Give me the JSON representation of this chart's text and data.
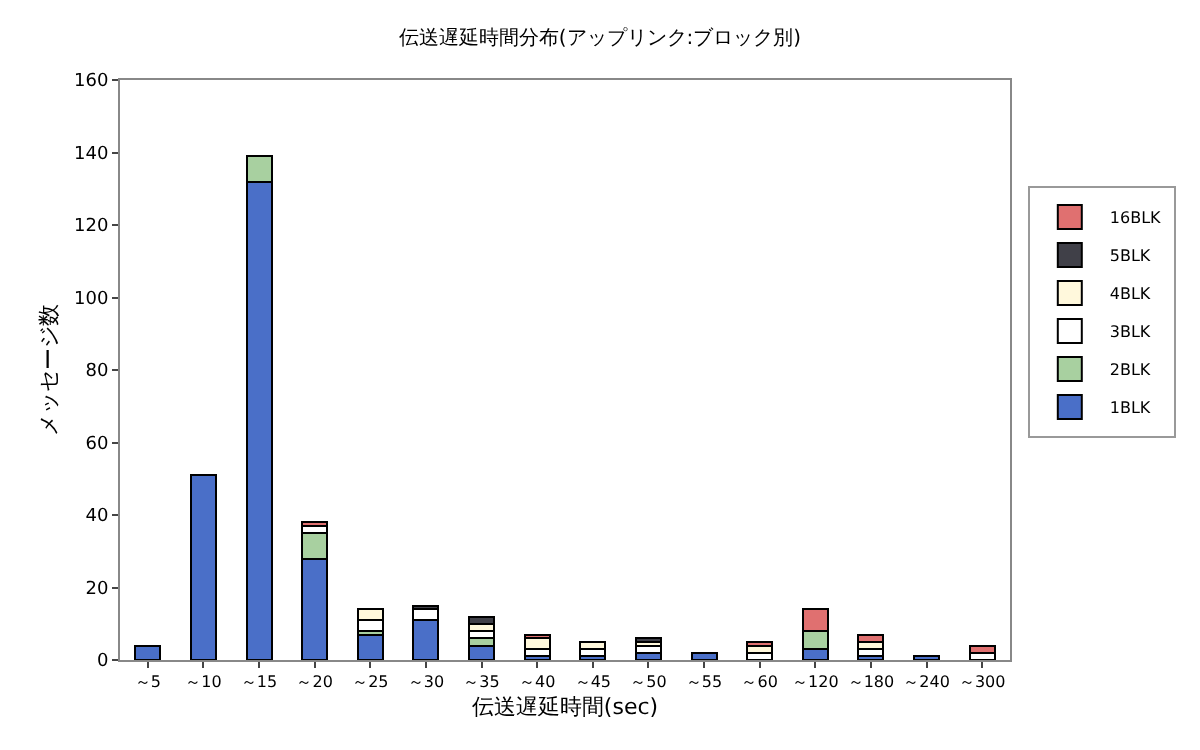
{
  "chart_data": {
    "type": "bar",
    "title": "伝送遅延時間分布(アップリンク:ブロック別)",
    "xlabel": "伝送遅延時間(sec)",
    "ylabel": "メッセージ数",
    "categories": [
      "～5",
      "～10",
      "～15",
      "～20",
      "～25",
      "～30",
      "～35",
      "～40",
      "～45",
      "～50",
      "～55",
      "～60",
      "～120",
      "～180",
      "～240",
      "～300"
    ],
    "stacked": true,
    "ylim": [
      0,
      160
    ],
    "yticks": [
      0,
      20,
      40,
      60,
      80,
      100,
      120,
      140,
      160
    ],
    "grid": false,
    "legend": "right",
    "series": [
      {
        "name": "1BLK",
        "color": "#4a6fc8",
        "values": [
          4,
          51,
          132,
          28,
          7,
          11,
          4,
          1,
          1,
          2,
          2,
          null,
          3,
          1,
          1,
          null
        ]
      },
      {
        "name": "2BLK",
        "color": "#a8d0a0",
        "values": [
          null,
          null,
          7,
          7,
          1,
          null,
          2,
          null,
          null,
          null,
          null,
          null,
          5,
          null,
          null,
          null
        ]
      },
      {
        "name": "3BLK",
        "color": "#ffffff",
        "values": [
          null,
          null,
          null,
          2,
          3,
          3,
          2,
          2,
          2,
          2,
          null,
          2,
          null,
          2,
          null,
          2
        ]
      },
      {
        "name": "4BLK",
        "color": "#fff8dc",
        "values": [
          null,
          null,
          null,
          null,
          3,
          null,
          2,
          3,
          2,
          1,
          null,
          2,
          null,
          2,
          null,
          null
        ]
      },
      {
        "name": "5BLK",
        "color": "#404048",
        "values": [
          null,
          null,
          null,
          null,
          null,
          1,
          2,
          null,
          null,
          1,
          null,
          null,
          null,
          null,
          null,
          null
        ]
      },
      {
        "name": "16BLK",
        "color": "#e07070",
        "values": [
          null,
          null,
          null,
          1,
          null,
          null,
          null,
          1,
          null,
          null,
          null,
          1,
          6,
          2,
          null,
          2
        ]
      }
    ]
  }
}
